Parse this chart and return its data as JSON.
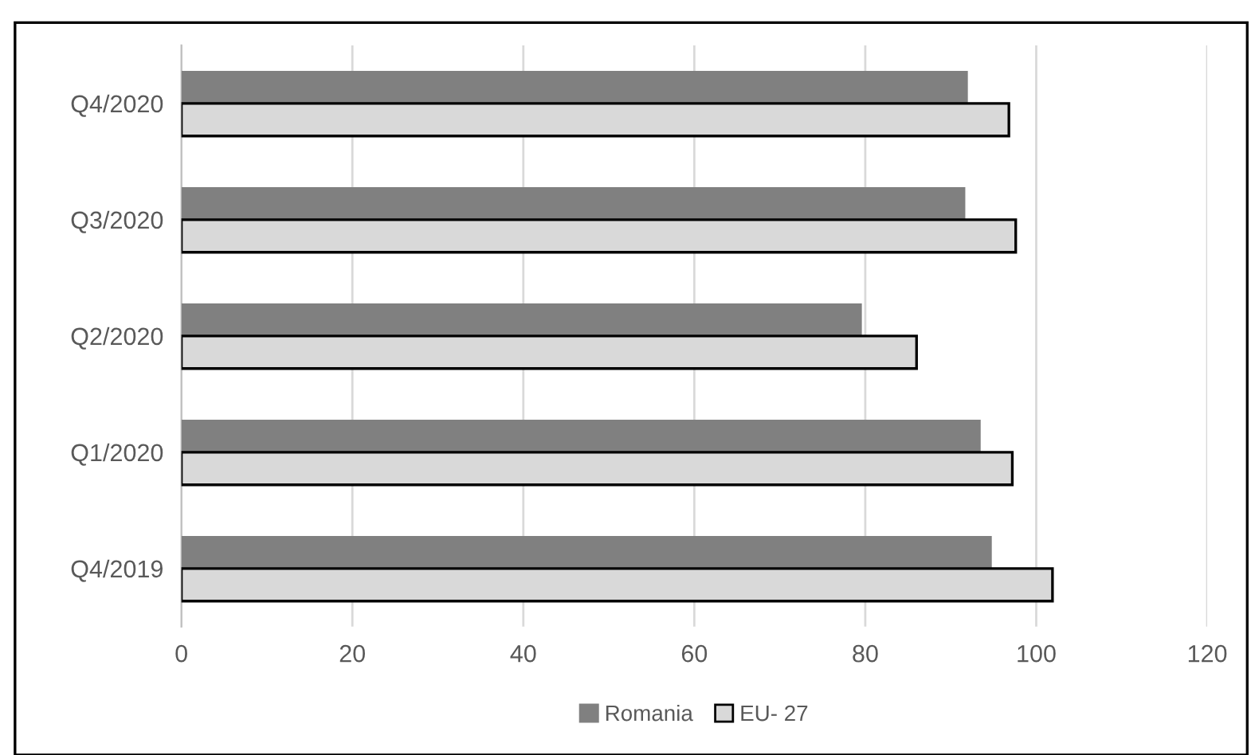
{
  "chart_data": {
    "type": "bar",
    "orientation": "horizontal",
    "categories": [
      "Q4/2020",
      "Q3/2020",
      "Q2/2020",
      "Q1/2020",
      "Q4/2019"
    ],
    "series": [
      {
        "name": "Romania",
        "color": "#808080",
        "values": [
          92.0,
          91.7,
          79.6,
          93.5,
          94.8
        ]
      },
      {
        "name": "EU- 27",
        "color": "#d9d9d9",
        "values": [
          96.8,
          97.6,
          86.0,
          97.2,
          101.9
        ]
      }
    ],
    "xlim": [
      0,
      120
    ],
    "xticks": [
      0,
      20,
      40,
      60,
      80,
      100,
      120
    ],
    "grid": "x",
    "legend": "bottom"
  }
}
